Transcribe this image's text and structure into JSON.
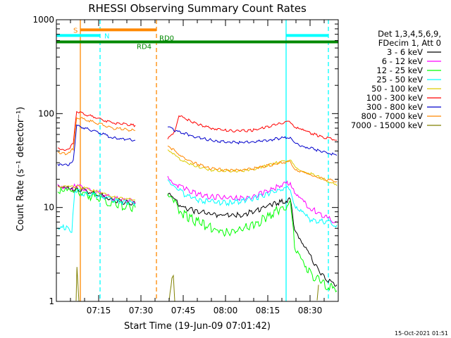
{
  "chart_data": {
    "type": "line",
    "title": "RHESSI Observing Summary Count Rates",
    "ylabel": "Count Rate (s⁻¹ detector⁻¹)",
    "xlabel": "Start Time (19-Jun-09 07:01:42)",
    "x_unit": "minutes of day",
    "xlim": [
      420,
      520
    ],
    "ylim": [
      1,
      1000
    ],
    "yscale": "log",
    "x_ticks": [
      {
        "value": 435,
        "label": "07:15"
      },
      {
        "value": 450,
        "label": "07:30"
      },
      {
        "value": 465,
        "label": "07:45"
      },
      {
        "value": 480,
        "label": "08:00"
      },
      {
        "value": 495,
        "label": "08:15"
      },
      {
        "value": 510,
        "label": "08:30"
      }
    ],
    "y_ticks": [
      {
        "value": 1,
        "label": "1"
      },
      {
        "value": 10,
        "label": "10"
      },
      {
        "value": 100,
        "label": "100"
      },
      {
        "value": 1000,
        "label": "1000"
      }
    ],
    "legend_header": [
      "Det 1,3,4,5,6,9,",
      "FDecim 1, Att 0"
    ],
    "legend_position": "right",
    "footer_date": "15-Oct-2021 01:51",
    "series": [
      {
        "name": "3 - 6 keV",
        "color": "#000000",
        "x": [
          420.5,
          426,
          427.2,
          437,
          440,
          448,
          449.5,
          458.5,
          459.5,
          462,
          465,
          470,
          475,
          480,
          485,
          490,
          495,
          500,
          503,
          504.5,
          510,
          515,
          519.5
        ],
        "y": [
          16,
          15.5,
          16,
          13,
          12,
          11,
          null,
          null,
          14,
          12,
          10,
          9,
          8.5,
          8.3,
          8.3,
          9,
          10.5,
          11.5,
          12,
          6,
          3,
          1.8,
          1.5
        ]
      },
      {
        "name": "6 - 12 keV",
        "color": "#ff00ff",
        "x": [
          420.5,
          426,
          427.2,
          437,
          440,
          448,
          449.5,
          458.5,
          459.5,
          462,
          465,
          470,
          475,
          480,
          485,
          490,
          495,
          500,
          503,
          504.5,
          510,
          515,
          519.5
        ],
        "y": [
          17,
          16.5,
          17,
          13.5,
          12.5,
          11.5,
          null,
          null,
          22,
          18,
          16,
          14,
          13,
          12.8,
          12.5,
          13,
          15,
          17.5,
          18.5,
          14,
          10,
          8,
          7
        ]
      },
      {
        "name": "12 - 25 keV",
        "color": "#00ff00",
        "x": [
          420.5,
          426,
          427.2,
          437,
          440,
          448,
          449.5,
          458.5,
          459.5,
          462,
          465,
          470,
          475,
          480,
          485,
          490,
          495,
          500,
          503,
          504.5,
          510,
          515,
          519.5
        ],
        "y": [
          15,
          14.5,
          15,
          12,
          11,
          10,
          null,
          null,
          13,
          11,
          8.5,
          7,
          6,
          5.5,
          5.7,
          6.5,
          8,
          10,
          11,
          4,
          2,
          1.5,
          1.3
        ]
      },
      {
        "name": "25 - 50 keV",
        "color": "#00ffff",
        "x": [
          420.5,
          424,
          425.5,
          426.5,
          427.5,
          429,
          437,
          440,
          448,
          449.5,
          458.5,
          459.5,
          462,
          465,
          470,
          475,
          480,
          485,
          490,
          495,
          500,
          503,
          504.5,
          510,
          515,
          519.5
        ],
        "y": [
          6,
          6.2,
          5.5,
          15,
          15,
          14,
          13,
          12,
          11,
          null,
          null,
          20,
          17,
          14,
          12,
          11.5,
          11.2,
          11.5,
          12.5,
          14,
          15.5,
          16,
          10,
          7.5,
          7,
          6.5
        ]
      },
      {
        "name": "50 - 100 keV",
        "color": "#ddcc00",
        "x": [
          420.5,
          426,
          427.2,
          437,
          440,
          448,
          449.5,
          458.5,
          459.5,
          462,
          465,
          470,
          475,
          480,
          485,
          490,
          495,
          500,
          503,
          504.5,
          510,
          515,
          519.5
        ],
        "y": [
          17,
          16.5,
          17,
          14,
          13,
          12,
          null,
          null,
          40,
          36,
          31,
          27,
          25,
          24.5,
          24.5,
          25.5,
          28,
          31,
          32,
          27,
          23,
          20,
          17
        ]
      },
      {
        "name": "100 - 300 keV",
        "color": "#ff0000",
        "x": [
          420.5,
          424,
          426,
          427.2,
          437,
          440,
          448,
          449.5,
          458.5,
          459.5,
          462,
          463.5,
          465,
          470,
          475,
          480,
          485,
          490,
          495,
          500,
          503,
          504.5,
          510,
          515,
          519.5
        ],
        "y": [
          42,
          41,
          48,
          105,
          85,
          80,
          75,
          null,
          null,
          55,
          65,
          98,
          90,
          78,
          70,
          66,
          65,
          67,
          72,
          80,
          83,
          72,
          62,
          56,
          52
        ]
      },
      {
        "name": "300 - 800 keV",
        "color": "#0000cc",
        "x": [
          420.5,
          424,
          426,
          427.2,
          437,
          440,
          448,
          449.5,
          458.5,
          459.5,
          462,
          465,
          470,
          475,
          480,
          485,
          490,
          495,
          500,
          503,
          504.5,
          510,
          515,
          519.5
        ],
        "y": [
          29,
          28,
          32,
          75,
          60,
          55,
          52,
          null,
          null,
          72,
          66,
          62,
          56,
          52,
          50,
          49,
          50,
          52,
          55,
          56,
          48,
          43,
          39,
          36
        ]
      },
      {
        "name": "800 - 7000 keV",
        "color": "#ff8800",
        "x": [
          420.5,
          424,
          426,
          427.2,
          437,
          440,
          448,
          449.5,
          458.5,
          459.5,
          462,
          465,
          470,
          475,
          480,
          485,
          490,
          495,
          500,
          503,
          504.5,
          510,
          515,
          519.5
        ],
        "y": [
          38,
          37,
          42,
          92,
          75,
          70,
          66,
          null,
          null,
          46,
          40,
          34,
          29,
          26,
          25,
          25,
          26,
          28,
          30,
          31,
          26,
          22,
          20,
          19
        ]
      },
      {
        "name": "7000 - 15000 keV",
        "color": "#808000",
        "x": [
          420.5,
          426,
          427,
          427.3,
          428,
          437,
          448,
          449.5,
          459.5,
          460,
          461,
          461.5,
          462,
          470,
          480,
          500,
          504.5,
          512,
          512.5,
          513,
          519.5
        ],
        "y": [
          null,
          null,
          1,
          2.4,
          1,
          null,
          null,
          null,
          null,
          1,
          1.8,
          1.9,
          1,
          null,
          null,
          null,
          null,
          null,
          1,
          1.5,
          null
        ]
      }
    ],
    "annotations": [
      {
        "label": "S",
        "color": "#ff8800",
        "x_start": 428.5,
        "x_end": 455.5,
        "level": 780
      },
      {
        "label": "N",
        "color": "#00ffff",
        "x_start": 420,
        "x_end": 435.5,
        "level": 680,
        "dashed_marker": 435.5
      },
      {
        "label": "N",
        "color": "#00ffff",
        "x_start": 501.5,
        "x_end": 516.5,
        "level": 680,
        "dashed_marker": 516.5
      },
      {
        "label": "RD0",
        "color": "#008800",
        "x_start": 420,
        "x_end": 520,
        "level": 580
      },
      {
        "label": "RD4",
        "color": "#008800",
        "x_start": 420,
        "x_end": 520,
        "level": 580
      }
    ],
    "event_lines": [
      {
        "x": 428.5,
        "color": "#ff8800",
        "style": "solid"
      },
      {
        "x": 455.5,
        "color": "#ff8800",
        "style": "dashed"
      },
      {
        "x": 435.5,
        "color": "#00ffff",
        "style": "dashed"
      },
      {
        "x": 501.5,
        "color": "#00ffff",
        "style": "solid"
      },
      {
        "x": 516.5,
        "color": "#00ffff",
        "style": "dashed"
      }
    ]
  }
}
